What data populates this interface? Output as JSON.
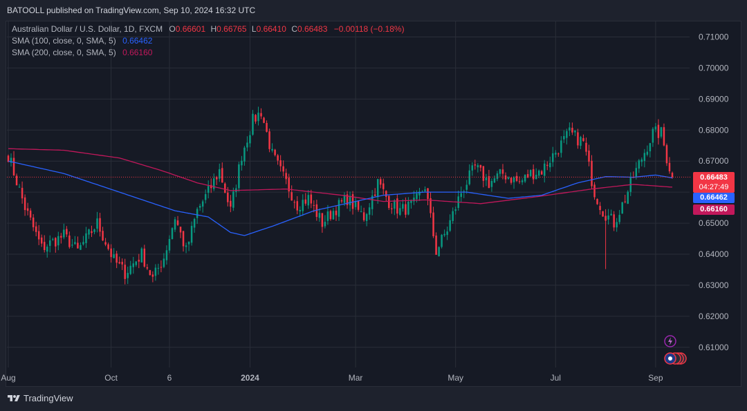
{
  "header": {
    "published": "BATOOLL published on TradingView.com, Sep 10, 2024 16:32 UTC"
  },
  "legend": {
    "symbol": "Australian Dollar / U.S. Dollar, 1D, FXCM",
    "o_label": "O",
    "o": "0.66601",
    "h_label": "H",
    "h": "0.66765",
    "l_label": "L",
    "l": "0.66410",
    "c_label": "C",
    "c": "0.66483",
    "change": "−0.00118 (−0.18%)",
    "sma100_label": "SMA (100, close, 0, SMA, 5)",
    "sma100_value": "0.66462",
    "sma200_label": "SMA (200, close, 0, SMA, 5)",
    "sma200_value": "0.66160"
  },
  "price_labels": {
    "last": "0.66483",
    "countdown": "04:27:49",
    "sma100": "0.66462",
    "sma200": "0.66160"
  },
  "footer": {
    "brand": "TradingView"
  },
  "colors": {
    "up": "#089981",
    "down": "#f23645",
    "sma100": "#2962ff",
    "sma200": "#c2185b",
    "grid": "#2a2e39",
    "background": "#161a25"
  },
  "chart_data": {
    "type": "candlestick",
    "title": "Australian Dollar / U.S. Dollar, 1D, FXCM",
    "y_ticks": [
      "0.71000",
      "0.70000",
      "0.69000",
      "0.68000",
      "0.67000",
      "0.66000",
      "0.65000",
      "0.64000",
      "0.63000",
      "0.62000",
      "0.61000"
    ],
    "ylim": [
      0.6035,
      0.715
    ],
    "x_ticks": [
      "Aug",
      "Oct",
      "6",
      "2024",
      "Mar",
      "May",
      "Jul",
      "Sep"
    ],
    "x_tick_pos": [
      0,
      37,
      58,
      87,
      125,
      161,
      197,
      233
    ],
    "n_bars": 240,
    "close_anchors": [
      [
        0,
        0.672
      ],
      [
        6,
        0.655
      ],
      [
        12,
        0.642
      ],
      [
        20,
        0.646
      ],
      [
        25,
        0.641
      ],
      [
        32,
        0.65
      ],
      [
        38,
        0.638
      ],
      [
        42,
        0.634
      ],
      [
        48,
        0.64
      ],
      [
        52,
        0.632
      ],
      [
        56,
        0.639
      ],
      [
        60,
        0.652
      ],
      [
        64,
        0.641
      ],
      [
        68,
        0.654
      ],
      [
        72,
        0.66
      ],
      [
        76,
        0.667
      ],
      [
        80,
        0.654
      ],
      [
        84,
        0.672
      ],
      [
        88,
        0.683
      ],
      [
        91,
        0.686
      ],
      [
        95,
        0.672
      ],
      [
        100,
        0.663
      ],
      [
        104,
        0.656
      ],
      [
        108,
        0.658
      ],
      [
        113,
        0.65
      ],
      [
        117,
        0.654
      ],
      [
        122,
        0.658
      ],
      [
        128,
        0.652
      ],
      [
        133,
        0.663
      ],
      [
        137,
        0.657
      ],
      [
        141,
        0.654
      ],
      [
        146,
        0.656
      ],
      [
        150,
        0.662
      ],
      [
        154,
        0.641
      ],
      [
        158,
        0.648
      ],
      [
        163,
        0.66
      ],
      [
        168,
        0.668
      ],
      [
        173,
        0.663
      ],
      [
        178,
        0.666
      ],
      [
        184,
        0.663
      ],
      [
        188,
        0.666
      ],
      [
        192,
        0.667
      ],
      [
        197,
        0.673
      ],
      [
        202,
        0.679
      ],
      [
        207,
        0.676
      ],
      [
        211,
        0.66
      ],
      [
        214,
        0.654
      ],
      [
        218,
        0.65
      ],
      [
        222,
        0.658
      ],
      [
        225,
        0.665
      ],
      [
        228,
        0.671
      ],
      [
        232,
        0.679
      ],
      [
        235,
        0.679
      ],
      [
        237,
        0.671
      ],
      [
        239,
        0.665
      ]
    ],
    "sma100_anchors": [
      [
        0,
        0.67
      ],
      [
        20,
        0.666
      ],
      [
        40,
        0.66
      ],
      [
        60,
        0.654
      ],
      [
        72,
        0.652
      ],
      [
        80,
        0.647
      ],
      [
        85,
        0.646
      ],
      [
        95,
        0.649
      ],
      [
        110,
        0.654
      ],
      [
        125,
        0.657
      ],
      [
        135,
        0.659
      ],
      [
        150,
        0.66
      ],
      [
        165,
        0.66
      ],
      [
        180,
        0.658
      ],
      [
        192,
        0.659
      ],
      [
        205,
        0.663
      ],
      [
        215,
        0.665
      ],
      [
        225,
        0.6648
      ],
      [
        233,
        0.6655
      ],
      [
        239,
        0.6646
      ]
    ],
    "sma200_anchors": [
      [
        0,
        0.674
      ],
      [
        20,
        0.6735
      ],
      [
        40,
        0.671
      ],
      [
        55,
        0.667
      ],
      [
        68,
        0.663
      ],
      [
        80,
        0.6605
      ],
      [
        100,
        0.661
      ],
      [
        120,
        0.659
      ],
      [
        135,
        0.657
      ],
      [
        150,
        0.6575
      ],
      [
        170,
        0.6563
      ],
      [
        190,
        0.6585
      ],
      [
        210,
        0.661
      ],
      [
        225,
        0.6625
      ],
      [
        239,
        0.6616
      ]
    ]
  }
}
